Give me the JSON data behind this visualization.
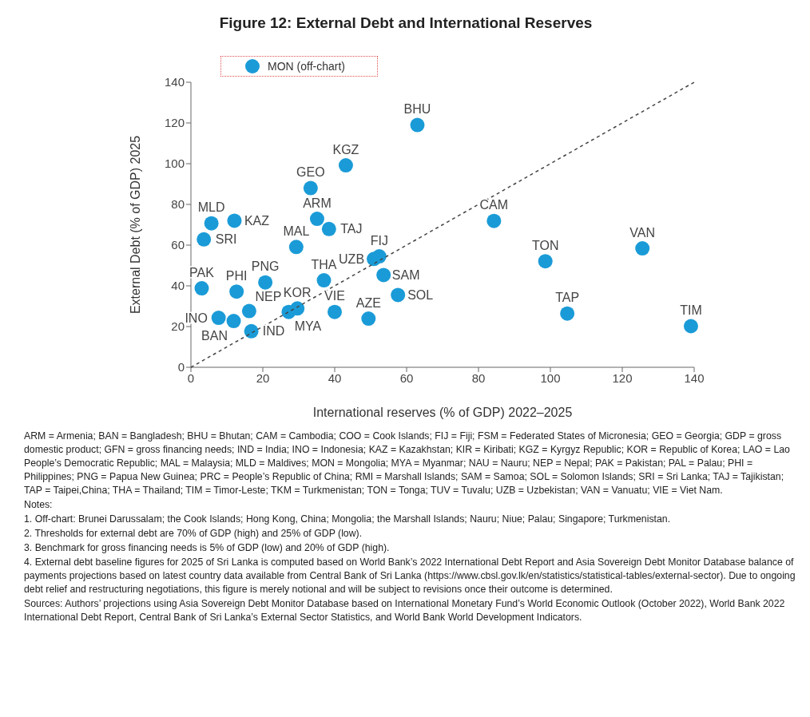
{
  "chart_data": {
    "type": "scatter",
    "title": "Figure 12: External Debt and International Reserves",
    "xlabel": "International reserves (% of GDP) 2022–2025",
    "ylabel": "External Debt (% of GDP) 2025",
    "xlim": [
      0,
      140
    ],
    "xticks": [
      0,
      20,
      40,
      60,
      80,
      100,
      120,
      140
    ],
    "ylim": [
      0,
      140
    ],
    "yticks": [
      0,
      20,
      40,
      60,
      80,
      100,
      120,
      140
    ],
    "grid": false,
    "legend": "top left",
    "marker": "circle",
    "series": [
      {
        "type": "scatter",
        "color": "#1a9bd7",
        "x": [
          63,
          43.1,
          33.3,
          5.7,
          12.1,
          3.6,
          35.1,
          38.4,
          29.3,
          3.0,
          12.7,
          7.7,
          11.9,
          16.2,
          16.8,
          20.7,
          27.2,
          29.6,
          37.0,
          40.0,
          49.4,
          50.9,
          52.4,
          53.6,
          57.6,
          84.3,
          98.6,
          125.6,
          104.7,
          139.1
        ],
        "values": [
          119,
          99.2,
          88,
          70.7,
          72,
          62.8,
          72.9,
          67.9,
          59.1,
          38.8,
          37.2,
          24.3,
          22.7,
          27.6,
          17.7,
          41.7,
          27.2,
          28.9,
          42.7,
          27.2,
          23.9,
          53.2,
          54.5,
          45.3,
          35.5,
          71.9,
          52.1,
          58.4,
          26.4,
          20.2
        ]
      },
      {
        "type": "scatter",
        "name": "MON (off-chart)",
        "color": "#1a9bd7"
      },
      {
        "type": "line",
        "color": "#444444",
        "line_style": "dashed",
        "marker": "none",
        "x": [
          0,
          140
        ],
        "values": [
          0,
          140
        ]
      }
    ],
    "annotations": [
      {
        "text": "BHU",
        "x": 63,
        "y": 119
      },
      {
        "text": "KGZ",
        "x": 43.1,
        "y": 99.2
      },
      {
        "text": "GEO",
        "x": 33.3,
        "y": 88
      },
      {
        "text": "MLD",
        "x": 5.7,
        "y": 70.7
      },
      {
        "text": "KAZ",
        "x": 12.1,
        "y": 72
      },
      {
        "text": "SRI",
        "x": 3.6,
        "y": 62.8
      },
      {
        "text": "ARM",
        "x": 35.1,
        "y": 72.9
      },
      {
        "text": "TAJ",
        "x": 38.4,
        "y": 67.9
      },
      {
        "text": "MAL",
        "x": 29.3,
        "y": 59.1
      },
      {
        "text": "PAK",
        "x": 3.0,
        "y": 38.8
      },
      {
        "text": "PHI",
        "x": 12.7,
        "y": 37.2
      },
      {
        "text": "INO",
        "x": 7.7,
        "y": 24.3
      },
      {
        "text": "BAN",
        "x": 11.9,
        "y": 22.7
      },
      {
        "text": "NEP",
        "x": 16.2,
        "y": 27.6
      },
      {
        "text": "IND",
        "x": 16.8,
        "y": 17.7
      },
      {
        "text": "PNG",
        "x": 20.7,
        "y": 41.7
      },
      {
        "text": "MYA",
        "x": 27.2,
        "y": 27.2
      },
      {
        "text": "KOR",
        "x": 29.6,
        "y": 28.9
      },
      {
        "text": "THA",
        "x": 37.0,
        "y": 42.7
      },
      {
        "text": "VIE",
        "x": 40.0,
        "y": 27.2
      },
      {
        "text": "AZE",
        "x": 49.4,
        "y": 23.9
      },
      {
        "text": "UZB",
        "x": 50.9,
        "y": 53.2
      },
      {
        "text": "FIJ",
        "x": 52.4,
        "y": 54.5
      },
      {
        "text": "SAM",
        "x": 53.6,
        "y": 45.3
      },
      {
        "text": "SOL",
        "x": 57.6,
        "y": 35.5
      },
      {
        "text": "CAM",
        "x": 84.3,
        "y": 71.9
      },
      {
        "text": "TON",
        "x": 98.6,
        "y": 52.1
      },
      {
        "text": "VAN",
        "x": 125.6,
        "y": 58.4
      },
      {
        "text": "TAP",
        "x": 104.7,
        "y": 26.4
      },
      {
        "text": "TIM",
        "x": 139.1,
        "y": 20.2
      },
      "ARM = Armenia; BAN = Bangladesh; BHU = Bhutan; CAM = Cambodia; COO = Cook Islands; FIJ = Fiji; FSM = Federated States of Micronesia; GEO = Georgia; GDP = gross domestic product; GFN = gross financing needs; IND = India; INO = Indonesia; KAZ = Kazakhstan; KIR = Kiribati; KGZ = Kyrgyz Republic; KOR = Republic of Korea; LAO = Lao People’s Democratic Republic; MAL = Malaysia; MLD = Maldives; MON = Mongolia; MYA = Myanmar; NAU = Nauru; NEP = Nepal; PAK = Pakistan; PAL = Palau; PHI = Philippines; PNG = Papua New Guinea; PRC = People’s Republic of China; RMI = Marshall Islands; SAM = Samoa; SOL = Solomon Islands; SRI = Sri Lanka; TAJ = Tajikistan; TAP = Taipei,China; THA = Thailand; TIM = Timor-Leste; TKM = Turkmenistan; TON = Tonga; TUV = Tuvalu; UZB = Uzbekistan; VAN = Vanuatu; VIE = Viet Nam.",
      "Notes:",
      "1. Off-chart: Brunei Darussalam; the Cook Islands; Hong Kong, China; Mongolia; the Marshall Islands; Nauru; Niue; Palau; Singapore; Turkmenistan.",
      "2. Thresholds for external debt are 70% of GDP (high) and 25% of GDP (low).",
      "3. Benchmark for gross financing needs is 5% of GDP (low) and 20% of GDP (high).",
      "4. External debt baseline figures for 2025 of Sri Lanka is computed based on World Bank’s 2022 International Debt Report and Asia Sovereign Debt Monitor Database balance of payments projections based on latest country data available from Central Bank of Sri Lanka (https://www.cbsl.gov.lk/en/statistics/statistical-tables/external-sector). Due to ongoing debt relief and restructuring negotiations, this figure is merely notional and will be subject to revisions once their outcome is determined.",
      "Sources: Authors’ projections using Asia Sovereign Debt Monitor Database based on International Monetary Fund’s World Economic Outlook (October 2022), World Bank 2022 International Debt Report, Central Bank of Sri Lanka’s External Sector Statistics, and World Bank World Development Indicators."
    ]
  }
}
